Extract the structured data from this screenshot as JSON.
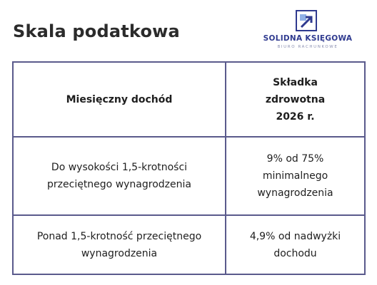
{
  "title": "Skala podatkowa",
  "logo": {
    "name": "SOLIDNA KSIĘGOWA",
    "subtitle": "BIURO RACHUNKOWE",
    "icon": "logo-mark-icon",
    "color": "#2f3a8f"
  },
  "table": {
    "headers": [
      "Miesięczny dochód",
      "Składka zdrowotna 2026 r."
    ],
    "rows": [
      [
        "Do wysokości 1,5-krotności przeciętnego wynagrodzenia",
        "9% od 75% minimalnego wynagrodzenia"
      ],
      [
        "Ponad 1,5-krotność przeciętnego wynagrodzenia",
        "4,9% od nadwyżki dochodu"
      ]
    ],
    "border_color": "#5a5a8c"
  }
}
